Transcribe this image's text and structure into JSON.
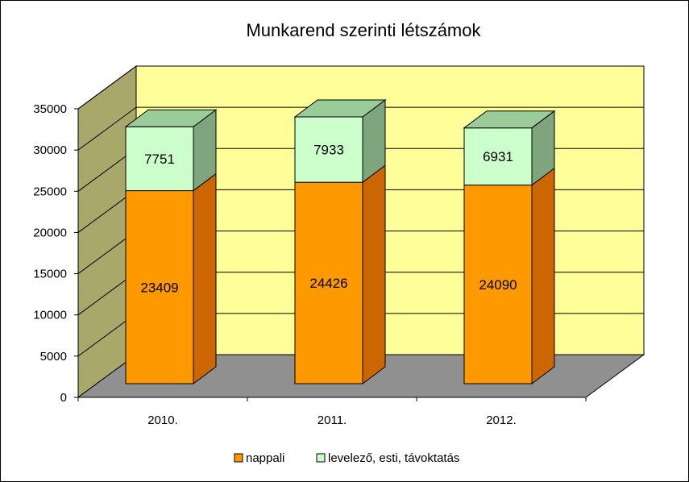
{
  "chart_data": {
    "type": "bar",
    "stacked": true,
    "three_d": true,
    "title": "Munkarend szerinti létszámok",
    "categories": [
      "2010.",
      "2011.",
      "2012."
    ],
    "series": [
      {
        "name": "nappali",
        "values": [
          23409,
          24426,
          24090
        ],
        "color": "#ff9900",
        "side_color": "#cc6600",
        "top_color": "#ffb84d"
      },
      {
        "name": "levelező, esti, távoktatás",
        "values": [
          7751,
          7933,
          6931
        ],
        "color": "#ccffcc",
        "side_color": "#7fa57f",
        "top_color": "#99cc99"
      }
    ],
    "ylim": [
      0,
      35000
    ],
    "yticks": [
      0,
      5000,
      10000,
      15000,
      20000,
      25000,
      30000,
      35000
    ],
    "grid": true,
    "legend_position": "bottom",
    "colors": {
      "back_wall": "#ffff99",
      "side_wall": "#a8a86a",
      "floor": "#909090"
    }
  }
}
